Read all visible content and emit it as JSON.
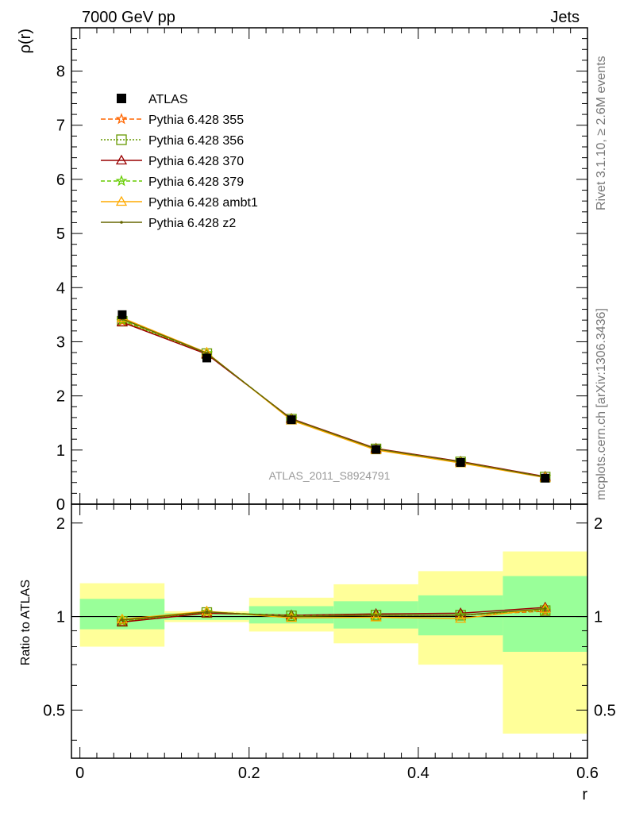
{
  "header": {
    "left": "7000 GeV pp",
    "right": "Jets"
  },
  "side_text": {
    "top": "Rivet 3.1.10, ≥ 2.6M events",
    "bottom": "mcplots.cern.ch [arXiv:1306.3436]"
  },
  "analysis_label": "ATLAS_2011_S8924791",
  "colors": {
    "band_inner": "#99ff99",
    "band_outer": "#ffff99",
    "data": "#000000"
  },
  "chart_data": {
    "type": "line",
    "xlabel": "r",
    "ylabel_top": "ρ(r)",
    "ylabel_bottom": "Ratio to ATLAS",
    "xlim": [
      -0.01,
      0.6
    ],
    "ylim_top": [
      0,
      8.8
    ],
    "ylim_bottom": [
      0.35,
      2.3
    ],
    "ratio_scale": "log",
    "x_ticks": [
      "0",
      "0.2",
      "0.4",
      "0.6"
    ],
    "y_ticks_top": [
      "0",
      "1",
      "2",
      "3",
      "4",
      "5",
      "6",
      "7",
      "8"
    ],
    "y_ticks_bottom": [
      "0.5",
      "1",
      "2"
    ],
    "bins": [
      [
        0.0,
        0.1
      ],
      [
        0.1,
        0.2
      ],
      [
        0.2,
        0.3
      ],
      [
        0.3,
        0.4
      ],
      [
        0.4,
        0.5
      ],
      [
        0.5,
        0.6
      ]
    ],
    "x": [
      0.05,
      0.15,
      0.25,
      0.35,
      0.45,
      0.55
    ],
    "data": {
      "name": "ATLAS",
      "values": [
        3.5,
        2.7,
        1.56,
        1.01,
        0.77,
        0.48
      ],
      "ratio_band_inner": [
        [
          0.91,
          1.14
        ],
        [
          0.975,
          1.025
        ],
        [
          0.95,
          1.08
        ],
        [
          0.915,
          1.12
        ],
        [
          0.87,
          1.17
        ],
        [
          0.77,
          1.35
        ]
      ],
      "ratio_band_outer": [
        [
          0.8,
          1.28
        ],
        [
          0.96,
          1.04
        ],
        [
          0.895,
          1.15
        ],
        [
          0.82,
          1.27
        ],
        [
          0.7,
          1.4
        ],
        [
          0.42,
          1.62
        ]
      ]
    },
    "series": [
      {
        "name": "Pythia 6.428 355",
        "color": "#ff6600",
        "dash": "6,3",
        "marker": "star",
        "values": [
          3.38,
          2.78,
          1.57,
          1.02,
          0.78,
          0.5
        ],
        "ratio": [
          0.965,
          1.03,
          1.005,
          1.01,
          1.01,
          1.04
        ]
      },
      {
        "name": "Pythia 6.428 356",
        "color": "#669900",
        "dash": "2,2",
        "marker": "square",
        "values": [
          3.38,
          2.78,
          1.57,
          1.02,
          0.78,
          0.5
        ],
        "ratio": [
          0.965,
          1.03,
          1.005,
          1.01,
          1.01,
          1.045
        ]
      },
      {
        "name": "Pythia 6.428 370",
        "color": "#990000",
        "dash": "",
        "marker": "triangle",
        "values": [
          3.36,
          2.77,
          1.58,
          1.03,
          0.79,
          0.51
        ],
        "ratio": [
          0.96,
          1.025,
          1.01,
          1.02,
          1.025,
          1.07
        ]
      },
      {
        "name": "Pythia 6.428 379",
        "color": "#66cc00",
        "dash": "5,3",
        "marker": "star",
        "values": [
          3.4,
          2.79,
          1.57,
          1.02,
          0.78,
          0.5
        ],
        "ratio": [
          0.97,
          1.035,
          1.005,
          1.01,
          1.01,
          1.05
        ]
      },
      {
        "name": "Pythia 6.428 ambt1",
        "color": "#ffaa00",
        "dash": "",
        "marker": "triangle",
        "values": [
          3.44,
          2.8,
          1.55,
          1.0,
          0.76,
          0.49
        ],
        "ratio": [
          0.98,
          1.04,
          0.99,
          0.995,
          0.985,
          1.06
        ]
      },
      {
        "name": "Pythia 6.428 z2",
        "color": "#666600",
        "dash": "",
        "marker": "dot",
        "values": [
          3.42,
          2.79,
          1.57,
          1.02,
          0.78,
          0.5
        ],
        "ratio": [
          0.975,
          1.035,
          1.0,
          1.01,
          1.01,
          1.06
        ]
      }
    ]
  }
}
